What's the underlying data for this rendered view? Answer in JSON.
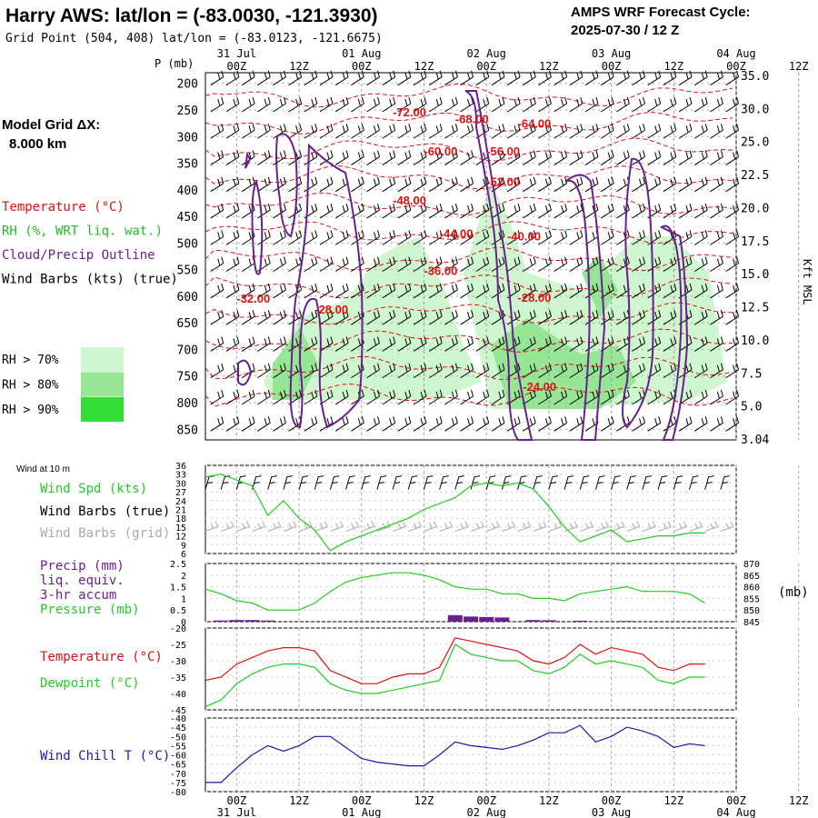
{
  "header": {
    "title": "Harry AWS:  lat/lon = (-83.0030, -121.3930)",
    "subtitle": "Grid Point (504, 408) lat/lon = (-83.0123, -121.6675)",
    "forecast_label": "AMPS WRF Forecast Cycle:",
    "forecast_cycle": "2025-07-30 / 12  Z"
  },
  "sidebar": {
    "grid_label": "Model Grid ΔX:",
    "grid_value": "8.000 km",
    "legend": [
      {
        "text": "Temperature (°C)",
        "color": "#e01010"
      },
      {
        "text": "RH (%, WRT liq. wat.)",
        "color": "#22bb22"
      },
      {
        "text": "Cloud/Precip Outline",
        "color": "#6a1f8e"
      },
      {
        "text": "Wind Barbs (kts) (true)",
        "color": "#000000"
      }
    ],
    "rh_keys": [
      {
        "text": "RH > 70%",
        "color": "#cff7cf"
      },
      {
        "text": "RH > 80%",
        "color": "#96e696"
      },
      {
        "text": "RH > 90%",
        "color": "#33dd33"
      }
    ]
  },
  "axis": {
    "time_ticks": [
      "00Z",
      "12Z",
      "00Z",
      "12Z",
      "00Z",
      "12Z",
      "00Z",
      "12Z",
      "00Z",
      "12Z"
    ],
    "dates": [
      "31 Jul",
      "01 Aug",
      "02 Aug",
      "03 Aug",
      "04 Aug"
    ],
    "p_label": "P (mb)"
  },
  "colors": {
    "temperature": "#e01010",
    "rh": "#22cc22",
    "cloud": "#6a1f8e",
    "wind": "#000000",
    "grid_barbs": "#aaaaaa",
    "precip": "#6a1f8e",
    "windchill": "#1a1aaa"
  },
  "chart_data": [
    {
      "type": "heatmap",
      "name": "vertical cross-section",
      "ylabel": "P (mb)",
      "y_ticks": [
        200,
        250,
        300,
        350,
        400,
        450,
        500,
        550,
        600,
        650,
        700,
        750,
        800,
        850
      ],
      "ylim": [
        850,
        200
      ],
      "right_axis_label": "Kft MSL",
      "right_ticks": [
        "35.0",
        "30.0",
        "25.0",
        "22.5",
        "20.0",
        "17.5",
        "15.0",
        "12.5",
        "10.0",
        "7.5",
        "5.0",
        "3.04"
      ],
      "temperature_labels": [
        {
          "text": "-72.00",
          "t": 36,
          "p": 262
        },
        {
          "text": "-68.00",
          "t": 48,
          "p": 275
        },
        {
          "text": "-64.00",
          "t": 60,
          "p": 283
        },
        {
          "text": "-60.00",
          "t": 42,
          "p": 335
        },
        {
          "text": "-56.00",
          "t": 54,
          "p": 335
        },
        {
          "text": "-52.00",
          "t": 54,
          "p": 393
        },
        {
          "text": "-48.00",
          "t": 36,
          "p": 428
        },
        {
          "text": "-44.00",
          "t": 45,
          "p": 490
        },
        {
          "text": "-40.00",
          "t": 58,
          "p": 495
        },
        {
          "text": "-36.00",
          "t": 42,
          "p": 560
        },
        {
          "text": "-32.00",
          "t": 6,
          "p": 612
        },
        {
          "text": "-28.00",
          "t": 60,
          "p": 610
        },
        {
          "text": "-28.00",
          "t": 21,
          "p": 633
        },
        {
          "text": "-24.00",
          "t": 61,
          "p": 778
        }
      ]
    },
    {
      "type": "line",
      "name": "surface wind",
      "title": "Wind at 10 m",
      "series": [
        {
          "name": "Wind Spd (kts)",
          "color": "#22cc22",
          "x": [
            0,
            3,
            6,
            9,
            12,
            15,
            18,
            21,
            24,
            27,
            30,
            33,
            36,
            39,
            42,
            45,
            48,
            51,
            54,
            57,
            60,
            63,
            66,
            69,
            72,
            75,
            78,
            81,
            84,
            87,
            90,
            93,
            96
          ],
          "y": [
            32,
            33,
            31,
            29,
            19,
            24,
            18,
            14,
            7,
            10,
            12,
            14,
            16,
            18,
            21,
            23,
            25,
            29,
            30,
            29,
            30,
            28,
            22,
            15,
            10,
            12,
            14,
            10,
            11,
            12,
            12,
            13,
            13
          ]
        }
      ],
      "legend": [
        "Wind Spd (kts)",
        "Wind Barbs (true)",
        "Wind Barbs (grid)"
      ],
      "y_ticks": [
        6,
        9,
        12,
        15,
        18,
        21,
        24,
        27,
        30,
        33,
        36
      ],
      "ylim": [
        6,
        36
      ]
    },
    {
      "type": "line",
      "name": "precip and pressure",
      "series": [
        {
          "name": "Pressure (mb)",
          "axis": "right",
          "color": "#22cc22",
          "x": [
            0,
            3,
            6,
            9,
            12,
            15,
            18,
            21,
            24,
            27,
            30,
            33,
            36,
            39,
            42,
            45,
            48,
            51,
            54,
            57,
            60,
            63,
            66,
            69,
            72,
            75,
            78,
            81,
            84,
            87,
            90,
            93,
            96
          ],
          "y": [
            859,
            857,
            854,
            853,
            850,
            850,
            850,
            853,
            858,
            862,
            864,
            865,
            866,
            866,
            865,
            863,
            860,
            859,
            859,
            857,
            857,
            855,
            855,
            854,
            857,
            858,
            859,
            860,
            858,
            858,
            858,
            857,
            853
          ]
        },
        {
          "name": "Precip (mm) liq. equiv. 3-hr accum",
          "type": "bar",
          "axis": "left",
          "color": "#6a1f8e",
          "x": [
            3,
            6,
            9,
            12,
            48,
            51,
            54,
            57,
            63,
            66,
            72,
            81
          ],
          "y": [
            0.05,
            0.07,
            0.07,
            0.05,
            0.28,
            0.22,
            0.2,
            0.18,
            0.07,
            0.06,
            0.04,
            0.03
          ]
        }
      ],
      "legend": [
        "Precip (mm)",
        "liq. equiv.",
        "3-hr accum",
        "Pressure (mb)"
      ],
      "y_ticks": [
        0.0,
        0.5,
        1.0,
        1.5,
        2.0,
        2.5
      ],
      "ylim": [
        0,
        2.5
      ],
      "y2_ticks": [
        845,
        850,
        855,
        860,
        865,
        870
      ],
      "y2lim": [
        845,
        870
      ],
      "y2label": "(mb)"
    },
    {
      "type": "line",
      "name": "temperature and dewpoint",
      "series": [
        {
          "name": "Temperature (°C)",
          "color": "#e01010",
          "x": [
            0,
            3,
            6,
            9,
            12,
            15,
            18,
            21,
            24,
            27,
            30,
            33,
            36,
            39,
            42,
            45,
            48,
            51,
            54,
            57,
            60,
            63,
            66,
            69,
            72,
            75,
            78,
            81,
            84,
            87,
            90,
            93,
            96
          ],
          "y": [
            -36,
            -35,
            -31,
            -29,
            -27,
            -26,
            -26,
            -27,
            -33,
            -35,
            -37,
            -37,
            -35,
            -34,
            -34,
            -32,
            -23,
            -24,
            -25,
            -26,
            -27,
            -30,
            -31,
            -29,
            -25,
            -28,
            -26,
            -27,
            -28,
            -32,
            -33,
            -31,
            -31
          ]
        },
        {
          "name": "Dewpoint (°C)",
          "color": "#22cc22",
          "x": [
            0,
            3,
            6,
            9,
            12,
            15,
            18,
            21,
            24,
            27,
            30,
            33,
            36,
            39,
            42,
            45,
            48,
            51,
            54,
            57,
            60,
            63,
            66,
            69,
            72,
            75,
            78,
            81,
            84,
            87,
            90,
            93,
            96
          ],
          "y": [
            -44,
            -42,
            -37,
            -34,
            -32,
            -31,
            -31,
            -32,
            -37,
            -39,
            -40,
            -40,
            -39,
            -38,
            -37,
            -36,
            -25,
            -28,
            -29,
            -30,
            -30,
            -33,
            -34,
            -32,
            -28,
            -31,
            -30,
            -31,
            -32,
            -36,
            -37,
            -35,
            -35
          ]
        }
      ],
      "y_ticks": [
        -45,
        -40,
        -35,
        -30,
        -25,
        -20
      ],
      "ylim": [
        -45,
        -20
      ]
    },
    {
      "type": "line",
      "name": "wind chill",
      "series": [
        {
          "name": "Wind Chill T (°C)",
          "color": "#1a1aaa",
          "x": [
            0,
            3,
            6,
            9,
            12,
            15,
            18,
            21,
            24,
            27,
            30,
            33,
            36,
            39,
            42,
            45,
            48,
            51,
            54,
            57,
            60,
            63,
            66,
            69,
            72,
            75,
            78,
            81,
            84,
            87,
            90,
            93,
            96
          ],
          "y": [
            -75,
            -75,
            -67,
            -60,
            -55,
            -58,
            -55,
            -50,
            -50,
            -56,
            -62,
            -64,
            -65,
            -66,
            -66,
            -60,
            -53,
            -55,
            -56,
            -57,
            -55,
            -52,
            -48,
            -48,
            -44,
            -53,
            -50,
            -45,
            -47,
            -50,
            -56,
            -54,
            -55
          ]
        }
      ],
      "y_ticks": [
        -80,
        -75,
        -70,
        -65,
        -60,
        -55,
        -50,
        -45,
        -40
      ],
      "ylim": [
        -80,
        -40
      ]
    }
  ]
}
